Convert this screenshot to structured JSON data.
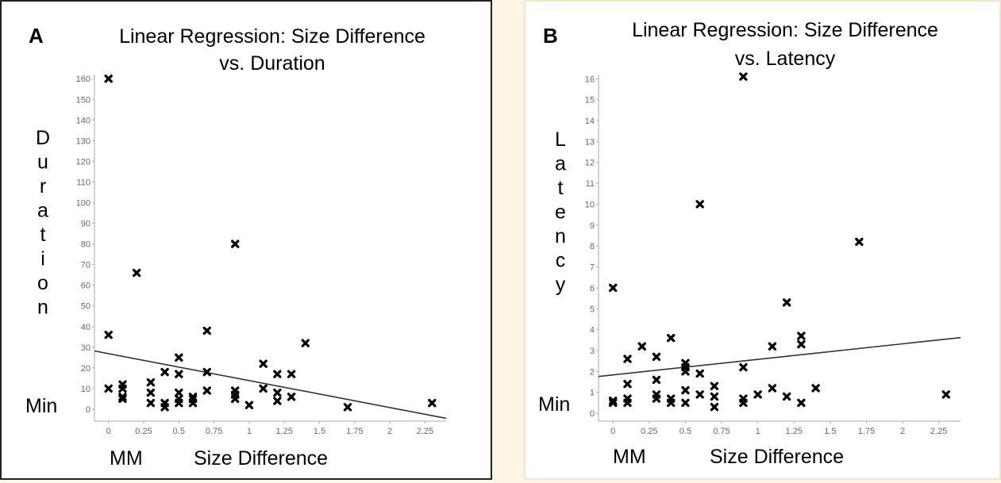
{
  "chart_data": [
    {
      "type": "scatter",
      "panel_label": "A",
      "title_lines": [
        "Linear Regression: Size Difference",
        "vs. Duration"
      ],
      "ylabel": "Duration",
      "ylabel_unit": "Min",
      "xlabel": "Size Difference",
      "xlabel_unit": "MM",
      "xlim": [
        -0.1,
        2.4
      ],
      "ylim": [
        -5,
        162
      ],
      "x_ticks": [
        0,
        0.25,
        0.5,
        0.75,
        1,
        1.25,
        1.5,
        1.75,
        2,
        2.25
      ],
      "x_tick_labels": [
        "0",
        "0.25",
        "0.5",
        "0.75",
        "1",
        "1.25",
        "1.5",
        "1.75",
        "2",
        "2.25"
      ],
      "y_ticks": [
        0,
        10,
        20,
        30,
        40,
        50,
        60,
        70,
        80,
        90,
        100,
        110,
        120,
        130,
        140,
        150,
        160
      ],
      "y_tick_labels": [
        "0",
        "10",
        "20",
        "30",
        "40",
        "50",
        "60",
        "70",
        "80",
        "90",
        "100",
        "110",
        "120",
        "130",
        "140",
        "150",
        "160"
      ],
      "grid": false,
      "points": [
        [
          0,
          160
        ],
        [
          0,
          36
        ],
        [
          0,
          10
        ],
        [
          0.1,
          12
        ],
        [
          0.1,
          10
        ],
        [
          0.1,
          6
        ],
        [
          0.1,
          5
        ],
        [
          0.2,
          66
        ],
        [
          0.3,
          13
        ],
        [
          0.3,
          8
        ],
        [
          0.3,
          3
        ],
        [
          0.4,
          18
        ],
        [
          0.4,
          3
        ],
        [
          0.4,
          1
        ],
        [
          0.5,
          25
        ],
        [
          0.5,
          17
        ],
        [
          0.5,
          8
        ],
        [
          0.5,
          5
        ],
        [
          0.5,
          3
        ],
        [
          0.6,
          6
        ],
        [
          0.6,
          5
        ],
        [
          0.6,
          3
        ],
        [
          0.7,
          38
        ],
        [
          0.7,
          18
        ],
        [
          0.7,
          9
        ],
        [
          0.9,
          80
        ],
        [
          0.9,
          9
        ],
        [
          0.9,
          7
        ],
        [
          0.9,
          5
        ],
        [
          1.0,
          2
        ],
        [
          1.1,
          22
        ],
        [
          1.1,
          10
        ],
        [
          1.2,
          17
        ],
        [
          1.2,
          8
        ],
        [
          1.2,
          4
        ],
        [
          1.3,
          17
        ],
        [
          1.3,
          6
        ],
        [
          1.4,
          32
        ],
        [
          1.7,
          1
        ],
        [
          2.3,
          3
        ]
      ],
      "regression": {
        "x": [
          -0.1,
          2.4
        ],
        "y": [
          28.2,
          -4.4
        ]
      }
    },
    {
      "type": "scatter",
      "panel_label": "B",
      "title_lines": [
        "Linear Regression: Size Difference",
        "vs. Latency"
      ],
      "ylabel": "Latency",
      "ylabel_unit": "Min",
      "xlabel": "Size Difference",
      "xlabel_unit": "MM",
      "xlim": [
        -0.1,
        2.4
      ],
      "ylim": [
        -0.3,
        16.2
      ],
      "x_ticks": [
        0,
        0.25,
        0.5,
        0.75,
        1,
        1.25,
        1.5,
        1.75,
        2,
        2.25
      ],
      "x_tick_labels": [
        "0",
        "0.25",
        "0.5",
        "0.75",
        "1",
        "1.25",
        "1.5",
        "1.75",
        "2",
        "2.25"
      ],
      "y_ticks": [
        0,
        1,
        2,
        3,
        4,
        5,
        6,
        7,
        8,
        9,
        10,
        11,
        12,
        13,
        14,
        15,
        16
      ],
      "y_tick_labels": [
        "0",
        "1",
        "2",
        "3",
        "4",
        "5",
        "6",
        "7",
        "8",
        "9",
        "10",
        "11",
        "12",
        "13",
        "14",
        "15",
        "16"
      ],
      "grid": false,
      "points": [
        [
          0,
          6
        ],
        [
          0,
          0.6
        ],
        [
          0,
          0.5
        ],
        [
          0.1,
          2.6
        ],
        [
          0.1,
          1.4
        ],
        [
          0.1,
          0.7
        ],
        [
          0.1,
          0.5
        ],
        [
          0.2,
          3.2
        ],
        [
          0.3,
          2.7
        ],
        [
          0.3,
          1.6
        ],
        [
          0.3,
          0.9
        ],
        [
          0.3,
          0.7
        ],
        [
          0.4,
          3.6
        ],
        [
          0.4,
          0.7
        ],
        [
          0.4,
          0.5
        ],
        [
          0.5,
          2.4
        ],
        [
          0.5,
          2.2
        ],
        [
          0.5,
          2.0
        ],
        [
          0.5,
          1.1
        ],
        [
          0.5,
          0.5
        ],
        [
          0.6,
          10
        ],
        [
          0.6,
          1.9
        ],
        [
          0.6,
          0.9
        ],
        [
          0.7,
          1.3
        ],
        [
          0.7,
          0.8
        ],
        [
          0.7,
          0.3
        ],
        [
          0.9,
          16.1
        ],
        [
          0.9,
          2.2
        ],
        [
          0.9,
          0.7
        ],
        [
          0.9,
          0.5
        ],
        [
          1.0,
          0.9
        ],
        [
          1.1,
          3.2
        ],
        [
          1.1,
          1.2
        ],
        [
          1.2,
          5.3
        ],
        [
          1.2,
          0.8
        ],
        [
          1.3,
          3.7
        ],
        [
          1.3,
          3.3
        ],
        [
          1.3,
          0.5
        ],
        [
          1.4,
          1.2
        ],
        [
          1.7,
          8.2
        ],
        [
          2.3,
          0.9
        ]
      ],
      "regression": {
        "x": [
          -0.1,
          2.4
        ],
        "y": [
          1.76,
          3.62
        ]
      }
    }
  ]
}
